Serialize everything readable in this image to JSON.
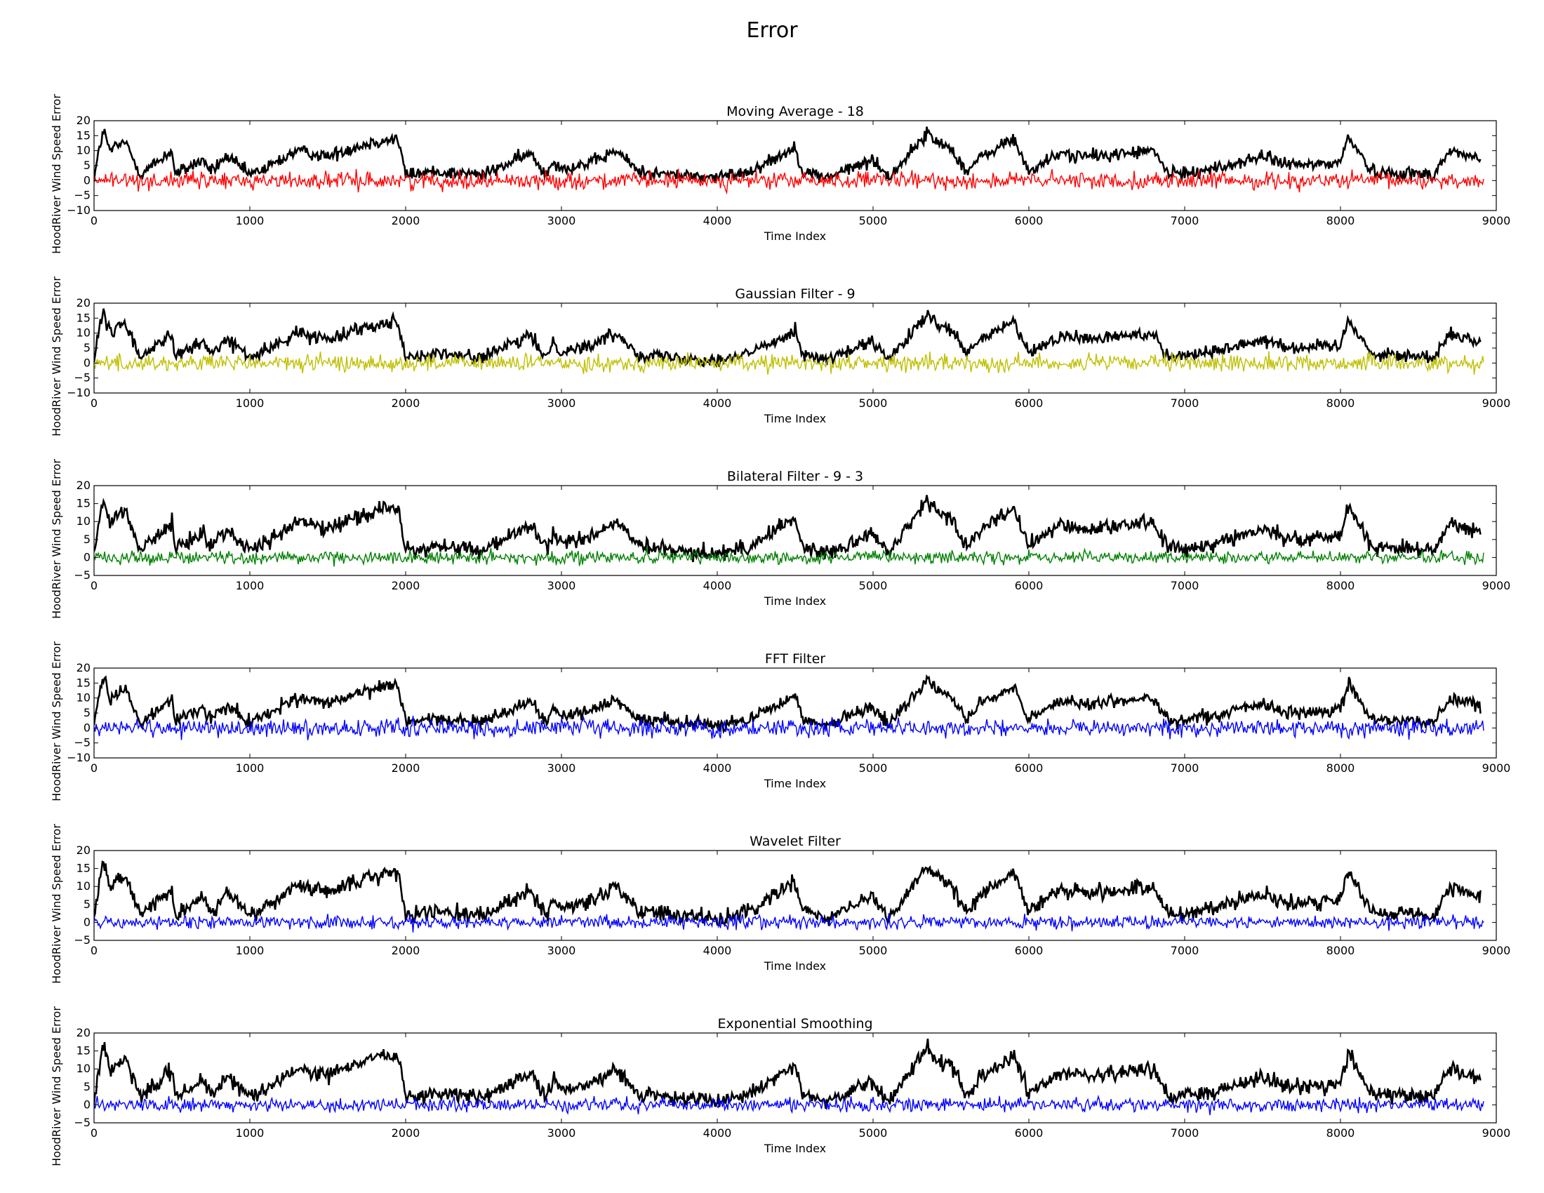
{
  "figure": {
    "title": "Error"
  },
  "chart_data": [
    {
      "type": "line",
      "title": "Moving Average - 18",
      "xlabel": "Time Index",
      "ylabel": "HoodRiver Wind Speed Error",
      "xlim": [
        0,
        9000
      ],
      "ylim": [
        -10,
        20
      ],
      "xticks": [
        0,
        1000,
        2000,
        3000,
        4000,
        5000,
        6000,
        7000,
        8000,
        9000
      ],
      "yticks": [
        -10,
        -5,
        0,
        5,
        10,
        15,
        20
      ],
      "grid": false,
      "series": [
        {
          "color": "#000000",
          "x": [
            0,
            40,
            60,
            100,
            200,
            300,
            500,
            520,
            700,
            750,
            850,
            1000,
            1100,
            1300,
            1500,
            1600,
            1800,
            1950,
            2000,
            2200,
            2500,
            2800,
            2900,
            2950,
            3000,
            3200,
            3350,
            3500,
            3700,
            4000,
            4200,
            4500,
            4550,
            4700,
            5000,
            5100,
            5350,
            5400,
            5500,
            5600,
            5700,
            5900,
            6000,
            6200,
            6400,
            6600,
            6800,
            6900,
            7200,
            7500,
            7700,
            8000,
            8050,
            8100,
            8200,
            8600,
            8700,
            8900
          ],
          "y": [
            1,
            12,
            17,
            10,
            13,
            2,
            10,
            2,
            7,
            3,
            8,
            2,
            4,
            10,
            8,
            10,
            13,
            14,
            2,
            3,
            2,
            9,
            2,
            7,
            4,
            6,
            10,
            3,
            2,
            1,
            3,
            11,
            3,
            1,
            7,
            1,
            16,
            13,
            11,
            3,
            8,
            14,
            3,
            9,
            8,
            9,
            10,
            2,
            4,
            8,
            5,
            6,
            15,
            11,
            3,
            2,
            10,
            7
          ]
        },
        {
          "color": "#ff0000",
          "x": [
            0,
            500,
            1000,
            2000,
            3000,
            4000,
            5000,
            6000,
            7000,
            8000,
            8920
          ],
          "y": [
            0,
            0,
            0,
            0,
            0,
            0,
            0,
            0,
            0,
            0,
            0
          ]
        }
      ]
    },
    {
      "type": "line",
      "title": "Gaussian Filter - 9",
      "xlabel": "Time Index",
      "ylabel": "HoodRiver Wind Speed Error",
      "xlim": [
        0,
        9000
      ],
      "ylim": [
        -10,
        20
      ],
      "xticks": [
        0,
        1000,
        2000,
        3000,
        4000,
        5000,
        6000,
        7000,
        8000,
        9000
      ],
      "yticks": [
        -10,
        -5,
        0,
        5,
        10,
        15,
        20
      ],
      "grid": false,
      "series": [
        {
          "color": "#000000",
          "x": [
            0,
            40,
            60,
            100,
            200,
            300,
            500,
            520,
            700,
            750,
            850,
            1000,
            1100,
            1300,
            1500,
            1600,
            1800,
            1950,
            2000,
            2200,
            2500,
            2800,
            2900,
            2950,
            3000,
            3200,
            3350,
            3500,
            3700,
            4000,
            4200,
            4500,
            4550,
            4700,
            5000,
            5100,
            5350,
            5400,
            5500,
            5600,
            5700,
            5900,
            6000,
            6200,
            6400,
            6600,
            6800,
            6900,
            7200,
            7500,
            7700,
            8000,
            8050,
            8100,
            8200,
            8600,
            8700,
            8900
          ],
          "y": [
            1,
            12,
            17,
            10,
            13,
            2,
            10,
            2,
            7,
            3,
            8,
            2,
            4,
            10,
            8,
            10,
            13,
            14,
            2,
            3,
            2,
            9,
            2,
            7,
            4,
            6,
            10,
            3,
            2,
            1,
            3,
            11,
            3,
            1,
            7,
            1,
            16,
            13,
            11,
            3,
            8,
            14,
            3,
            9,
            8,
            9,
            10,
            2,
            4,
            8,
            5,
            6,
            15,
            11,
            3,
            2,
            10,
            7
          ]
        },
        {
          "color": "#bfbf00",
          "x": [
            0,
            500,
            1000,
            2000,
            3000,
            4000,
            5000,
            6000,
            7000,
            8000,
            8920
          ],
          "y": [
            0,
            0,
            0,
            0,
            0,
            0,
            0,
            0,
            0,
            0,
            0
          ]
        }
      ]
    },
    {
      "type": "line",
      "title": "Bilateral Filter - 9 - 3",
      "xlabel": "Time Index",
      "ylabel": "HoodRiver Wind Speed Error",
      "xlim": [
        0,
        9000
      ],
      "ylim": [
        -5,
        20
      ],
      "xticks": [
        0,
        1000,
        2000,
        3000,
        4000,
        5000,
        6000,
        7000,
        8000,
        9000
      ],
      "yticks": [
        -5,
        0,
        5,
        10,
        15,
        20
      ],
      "grid": false,
      "series": [
        {
          "color": "#000000",
          "x": [
            0,
            40,
            60,
            100,
            200,
            300,
            500,
            520,
            700,
            750,
            850,
            1000,
            1100,
            1300,
            1500,
            1600,
            1800,
            1950,
            2000,
            2200,
            2500,
            2800,
            2900,
            2950,
            3000,
            3200,
            3350,
            3500,
            3700,
            4000,
            4200,
            4500,
            4550,
            4700,
            5000,
            5100,
            5350,
            5400,
            5500,
            5600,
            5700,
            5900,
            6000,
            6200,
            6400,
            6600,
            6800,
            6900,
            7200,
            7500,
            7700,
            8000,
            8050,
            8100,
            8200,
            8600,
            8700,
            8900
          ],
          "y": [
            1,
            12,
            17,
            10,
            13,
            2,
            10,
            2,
            7,
            3,
            8,
            2,
            4,
            10,
            8,
            10,
            13,
            14,
            2,
            3,
            2,
            9,
            2,
            7,
            4,
            6,
            10,
            3,
            2,
            1,
            3,
            11,
            3,
            1,
            7,
            1,
            16,
            13,
            11,
            3,
            8,
            14,
            3,
            9,
            8,
            9,
            10,
            2,
            4,
            8,
            5,
            6,
            15,
            11,
            3,
            2,
            10,
            7
          ]
        },
        {
          "color": "#008000",
          "x": [
            0,
            500,
            1000,
            2000,
            3000,
            4000,
            5000,
            6000,
            7000,
            8000,
            8920
          ],
          "y": [
            0,
            0,
            0,
            0,
            0,
            0,
            0,
            0,
            0,
            0,
            0
          ]
        }
      ]
    },
    {
      "type": "line",
      "title": "FFT Filter",
      "xlabel": "Time Index",
      "ylabel": "HoodRiver Wind Speed Error",
      "xlim": [
        0,
        9000
      ],
      "ylim": [
        -10,
        20
      ],
      "xticks": [
        0,
        1000,
        2000,
        3000,
        4000,
        5000,
        6000,
        7000,
        8000,
        9000
      ],
      "yticks": [
        -10,
        -5,
        0,
        5,
        10,
        15,
        20
      ],
      "grid": false,
      "series": [
        {
          "color": "#000000",
          "x": [
            0,
            40,
            60,
            100,
            200,
            300,
            500,
            520,
            700,
            750,
            850,
            1000,
            1100,
            1300,
            1500,
            1600,
            1800,
            1950,
            2000,
            2200,
            2500,
            2800,
            2900,
            2950,
            3000,
            3200,
            3350,
            3500,
            3700,
            4000,
            4200,
            4500,
            4550,
            4700,
            5000,
            5100,
            5350,
            5400,
            5500,
            5600,
            5700,
            5900,
            6000,
            6200,
            6400,
            6600,
            6800,
            6900,
            7200,
            7500,
            7700,
            8000,
            8050,
            8100,
            8200,
            8600,
            8700,
            8900
          ],
          "y": [
            1,
            12,
            17,
            10,
            13,
            2,
            10,
            2,
            7,
            3,
            8,
            2,
            4,
            10,
            8,
            10,
            13,
            14,
            2,
            3,
            2,
            9,
            2,
            7,
            4,
            6,
            10,
            3,
            2,
            1,
            3,
            11,
            3,
            1,
            7,
            1,
            16,
            13,
            11,
            3,
            8,
            14,
            3,
            9,
            8,
            9,
            10,
            2,
            4,
            8,
            5,
            6,
            15,
            11,
            3,
            2,
            10,
            7
          ]
        },
        {
          "color": "#0000ff",
          "x": [
            0,
            500,
            1000,
            2000,
            3000,
            4000,
            5000,
            6000,
            7000,
            8000,
            8920
          ],
          "y": [
            0,
            0,
            0,
            0,
            0,
            0,
            0,
            0,
            0,
            0,
            0
          ]
        }
      ]
    },
    {
      "type": "line",
      "title": "Wavelet Filter",
      "xlabel": "Time Index",
      "ylabel": "HoodRiver Wind Speed Error",
      "xlim": [
        0,
        9000
      ],
      "ylim": [
        -5,
        20
      ],
      "xticks": [
        0,
        1000,
        2000,
        3000,
        4000,
        5000,
        6000,
        7000,
        8000,
        9000
      ],
      "yticks": [
        -5,
        0,
        5,
        10,
        15,
        20
      ],
      "grid": false,
      "series": [
        {
          "color": "#000000",
          "x": [
            0,
            40,
            60,
            100,
            200,
            300,
            500,
            520,
            700,
            750,
            850,
            1000,
            1100,
            1300,
            1500,
            1600,
            1800,
            1950,
            2000,
            2200,
            2500,
            2800,
            2900,
            2950,
            3000,
            3200,
            3350,
            3500,
            3700,
            4000,
            4200,
            4500,
            4550,
            4700,
            5000,
            5100,
            5350,
            5400,
            5500,
            5600,
            5700,
            5900,
            6000,
            6200,
            6400,
            6600,
            6800,
            6900,
            7200,
            7500,
            7700,
            8000,
            8050,
            8100,
            8200,
            8600,
            8700,
            8900
          ],
          "y": [
            1,
            12,
            17,
            10,
            13,
            2,
            10,
            2,
            7,
            3,
            8,
            2,
            4,
            10,
            8,
            10,
            13,
            14,
            2,
            3,
            2,
            9,
            2,
            7,
            4,
            6,
            10,
            3,
            2,
            1,
            3,
            11,
            3,
            1,
            7,
            1,
            16,
            13,
            11,
            3,
            8,
            14,
            3,
            9,
            8,
            9,
            10,
            2,
            4,
            8,
            5,
            6,
            15,
            11,
            3,
            2,
            10,
            7
          ]
        },
        {
          "color": "#0000ff",
          "x": [
            0,
            500,
            1000,
            2000,
            3000,
            4000,
            5000,
            6000,
            7000,
            8000,
            8920
          ],
          "y": [
            0,
            0,
            0,
            0,
            0,
            0,
            0,
            0,
            0,
            0,
            0
          ]
        }
      ]
    },
    {
      "type": "line",
      "title": "Exponential Smoothing",
      "xlabel": "Time Index",
      "ylabel": "HoodRiver Wind Speed Error",
      "xlim": [
        0,
        9000
      ],
      "ylim": [
        -5,
        20
      ],
      "xticks": [
        0,
        1000,
        2000,
        3000,
        4000,
        5000,
        6000,
        7000,
        8000,
        9000
      ],
      "yticks": [
        -5,
        0,
        5,
        10,
        15,
        20
      ],
      "grid": false,
      "series": [
        {
          "color": "#000000",
          "x": [
            0,
            40,
            60,
            100,
            200,
            300,
            500,
            520,
            700,
            750,
            850,
            1000,
            1100,
            1300,
            1500,
            1600,
            1800,
            1950,
            2000,
            2200,
            2500,
            2800,
            2900,
            2950,
            3000,
            3200,
            3350,
            3500,
            3700,
            4000,
            4200,
            4500,
            4550,
            4700,
            5000,
            5100,
            5350,
            5400,
            5500,
            5600,
            5700,
            5900,
            6000,
            6200,
            6400,
            6600,
            6800,
            6900,
            7200,
            7500,
            7700,
            8000,
            8050,
            8100,
            8200,
            8600,
            8700,
            8900
          ],
          "y": [
            1,
            12,
            17,
            10,
            13,
            2,
            10,
            2,
            7,
            3,
            8,
            2,
            4,
            10,
            8,
            10,
            13,
            14,
            2,
            3,
            2,
            9,
            2,
            7,
            4,
            6,
            10,
            3,
            2,
            1,
            3,
            11,
            3,
            1,
            7,
            1,
            16,
            13,
            11,
            3,
            8,
            14,
            3,
            9,
            8,
            9,
            10,
            2,
            4,
            8,
            5,
            6,
            15,
            11,
            3,
            2,
            10,
            7
          ]
        },
        {
          "color": "#0000ff",
          "x": [
            0,
            500,
            1000,
            2000,
            3000,
            4000,
            5000,
            6000,
            7000,
            8000,
            8920
          ],
          "y": [
            0,
            0,
            0,
            0,
            0,
            0,
            0,
            0,
            0,
            0,
            0
          ]
        }
      ]
    }
  ]
}
